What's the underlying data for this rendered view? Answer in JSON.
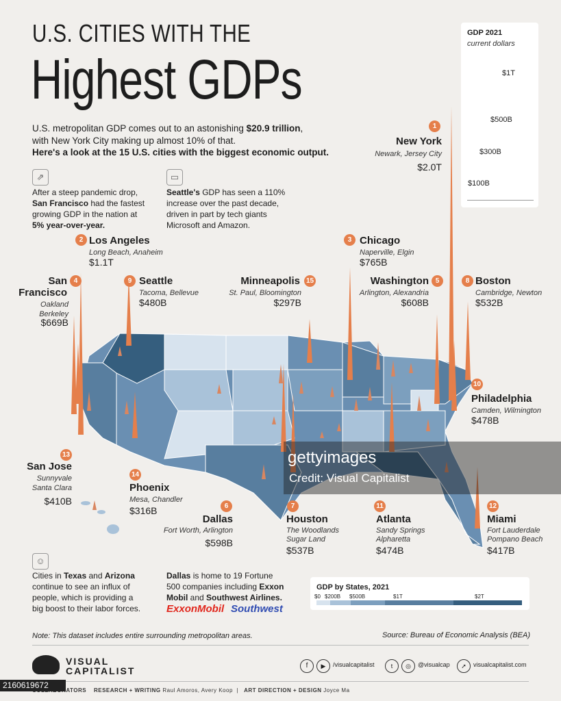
{
  "title_line1": "U.S. CITIES WITH THE",
  "title_line2": "Highest GDPs",
  "intro": {
    "p1_a": "U.S. metropolitan GDP comes out to an astonishing ",
    "p1_b": "$20.9 trillion",
    "p1_c": ",",
    "p1_d": "with New York City making up almost 10% of that.",
    "p2": "Here's a look at the 15 U.S. cities with the biggest economic output."
  },
  "facts": {
    "sf": [
      "After a steep pandemic drop,",
      "San Francisco",
      "had the fastest",
      "growing GDP in the nation at",
      "5% year-over-year."
    ],
    "seattle": [
      "Seattle's",
      " GDP has seen a 110%",
      "increase over the past decade,",
      "driven in part by tech giants",
      "Microsoft and Amazon."
    ],
    "texas": [
      "Cities in ",
      "Texas",
      " and ",
      "Arizona",
      "continue to see an influx of",
      "people, which is providing a",
      "big boost to their labor forces."
    ],
    "dallas": [
      "Dallas",
      " is home to 19 Fortune",
      "500 companies including ",
      "Exxon",
      "Mobil",
      " and ",
      "Southwest Airlines."
    ]
  },
  "logos": {
    "exxon": "ExxonMobil",
    "southwest": "Southwest"
  },
  "cities": [
    {
      "rank": "1",
      "name": "New York",
      "sub1": "Newark, Jersey City",
      "sub2": "",
      "value": "$2.0T"
    },
    {
      "rank": "2",
      "name": "Los Angeles",
      "sub1": "Long Beach, Anaheim",
      "sub2": "",
      "value": "$1.1T"
    },
    {
      "rank": "3",
      "name": "Chicago",
      "sub1": "Naperville, Elgin",
      "sub2": "",
      "value": "$765B"
    },
    {
      "rank": "4",
      "name": "San",
      "name2": "Francisco",
      "sub1": "Oakland",
      "sub2": "Berkeley",
      "value": "$669B"
    },
    {
      "rank": "5",
      "name": "Washington",
      "sub1": "Arlington, Alexandria",
      "sub2": "",
      "value": "$608B"
    },
    {
      "rank": "6",
      "name": "Dallas",
      "sub1": "Fort Worth, Arlington",
      "sub2": "",
      "value": "$598B"
    },
    {
      "rank": "7",
      "name": "Houston",
      "sub1": "The Woodlands",
      "sub2": "Sugar Land",
      "value": "$537B"
    },
    {
      "rank": "8",
      "name": "Boston",
      "sub1": "Cambridge, Newton",
      "sub2": "",
      "value": "$532B"
    },
    {
      "rank": "9",
      "name": "Seattle",
      "sub1": "Tacoma, Bellevue",
      "sub2": "",
      "value": "$480B"
    },
    {
      "rank": "10",
      "name": "Philadelphia",
      "sub1": "Camden, Wilmington",
      "sub2": "",
      "value": "$478B"
    },
    {
      "rank": "11",
      "name": "Atlanta",
      "sub1": "Sandy Springs",
      "sub2": "Alpharetta",
      "value": "$474B"
    },
    {
      "rank": "12",
      "name": "Miami",
      "sub1": "Fort Lauderdale",
      "sub2": "Pompano Beach",
      "value": "$417B"
    },
    {
      "rank": "13",
      "name": "San Jose",
      "sub1": "Sunnyvale",
      "sub2": "Santa Clara",
      "value": "$410B"
    },
    {
      "rank": "14",
      "name": "Phoenix",
      "sub1": "Mesa, Chandler",
      "sub2": "",
      "value": "$316B"
    },
    {
      "rank": "15",
      "name": "Minneapolis",
      "sub1": "St. Paul,  Bloomington",
      "sub2": "",
      "value": "$297B"
    }
  ],
  "gdp_scale": {
    "title": "GDP 2021",
    "subtitle": "current dollars",
    "labels": [
      "$100B",
      "$300B",
      "$500B",
      "$1T"
    ],
    "values": [
      100,
      300,
      500,
      1000
    ]
  },
  "state_legend": {
    "title": "GDP by States, 2021",
    "labels": [
      "$0",
      "$200B",
      "$500B",
      "$1T",
      "$2T"
    ],
    "colors": [
      "#d7e3ee",
      "#a9c2d9",
      "#7c9fbe",
      "#587e9f",
      "#355e7e"
    ]
  },
  "note": "Note: This dataset entire surrounding metropolitan areas.",
  "note_full": "Note: This dataset includes entire surrounding metropolitan areas.",
  "source": "Source: Bureau of Economic Analysis (BEA)",
  "brand": {
    "line1": "VISUAL",
    "line2": "CAPITALIST"
  },
  "social": {
    "handle1": "/visualcapitalist",
    "handle2": "@visualcap",
    "site": "visualcapitalist.com"
  },
  "credits": {
    "collab": "COLLABORATORS",
    "research_label": "RESEARCH + WRITING",
    "research_names": "Raul Amoros, Avery Koop",
    "art_label": "ART DIRECTION + DESIGN",
    "art_names": "Joyce Ma"
  },
  "watermark": {
    "main": "gettyimages",
    "sub": "Credit: Visual Capitalist"
  },
  "image_id": "2160619672",
  "colors": {
    "accent": "#e57f4b",
    "map_dark": "#355e7e",
    "map_light": "#d7e3ee"
  }
}
